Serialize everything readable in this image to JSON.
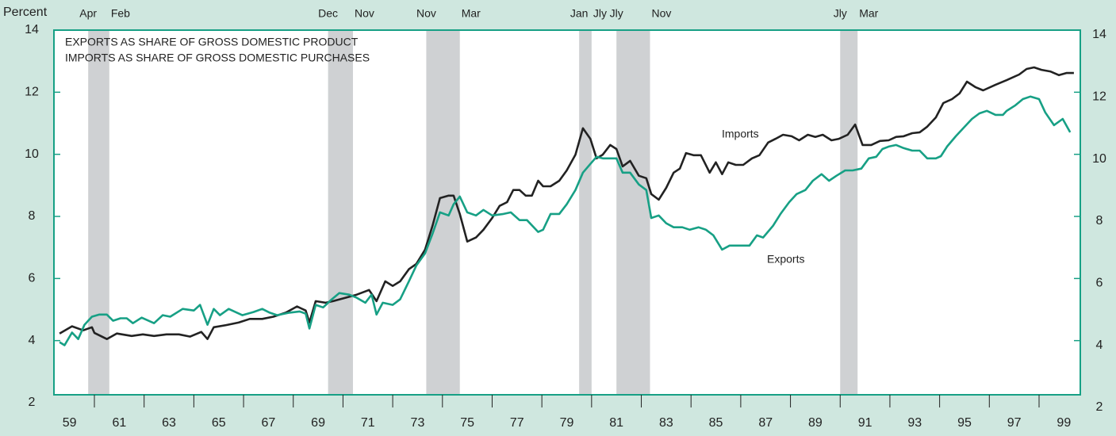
{
  "chart_data": {
    "type": "line",
    "y_axis_label": "Percent",
    "title_lines": [
      "EXPORTS AS SHARE OF GROSS DOMESTIC PRODUCT",
      "IMPORTS AS SHARE OF GROSS DOMESTIC PURCHASES"
    ],
    "xlim": [
      1959,
      2000
    ],
    "xticks": [
      {
        "value": 1959.5,
        "label": "59"
      },
      {
        "value": 1961.5,
        "label": "61"
      },
      {
        "value": 1963.5,
        "label": "63"
      },
      {
        "value": 1965.5,
        "label": "65"
      },
      {
        "value": 1967.5,
        "label": "67"
      },
      {
        "value": 1969.5,
        "label": "69"
      },
      {
        "value": 1971.5,
        "label": "71"
      },
      {
        "value": 1973.5,
        "label": "73"
      },
      {
        "value": 1975.5,
        "label": "75"
      },
      {
        "value": 1977.5,
        "label": "77"
      },
      {
        "value": 1979.5,
        "label": "79"
      },
      {
        "value": 1981.5,
        "label": "81"
      },
      {
        "value": 1983.5,
        "label": "83"
      },
      {
        "value": 1985.5,
        "label": "85"
      },
      {
        "value": 1987.5,
        "label": "87"
      },
      {
        "value": 1989.5,
        "label": "89"
      },
      {
        "value": 1991.5,
        "label": "91"
      },
      {
        "value": 1993.5,
        "label": "93"
      },
      {
        "value": 1995.5,
        "label": "95"
      },
      {
        "value": 1997.5,
        "label": "97"
      },
      {
        "value": 1999.5,
        "label": "99"
      }
    ],
    "xtick_marks": [
      1960.5,
      1962.5,
      1964.5,
      1966.5,
      1968.5,
      1970.5,
      1972.5,
      1974.5,
      1976.5,
      1978.5,
      1980.5,
      1982.5,
      1984.5,
      1986.5,
      1988.5,
      1990.5,
      1992.5,
      1994.5,
      1996.5,
      1998.5
    ],
    "ylim": [
      2,
      14
    ],
    "yticks": [
      2,
      4,
      6,
      8,
      10,
      12,
      14
    ],
    "y2lim": [
      2,
      14
    ],
    "y2ticks": [
      2,
      4,
      6,
      8,
      10,
      12,
      14
    ],
    "recessions": [
      {
        "start": 1960.25,
        "end": 1961.1,
        "start_label": "Apr",
        "end_label": "Feb"
      },
      {
        "start": 1969.9,
        "end": 1970.9,
        "start_label": "Dec",
        "end_label": "Nov"
      },
      {
        "start": 1973.85,
        "end": 1975.2,
        "start_label": "Nov",
        "end_label": "Mar"
      },
      {
        "start": 1980.0,
        "end": 1980.5,
        "start_label": "Jan",
        "end_label": "Jly"
      },
      {
        "start": 1981.5,
        "end": 1982.85,
        "start_label": "Jly",
        "end_label": "Nov"
      },
      {
        "start": 1990.5,
        "end": 1991.2,
        "start_label": "Jly",
        "end_label": "Mar"
      }
    ],
    "recession_color": "#cfd1d3",
    "series": [
      {
        "name": "Imports",
        "color": "#222222",
        "x": [
          1959.1,
          1959.6,
          1960.05,
          1960.4,
          1960.5,
          1961.0,
          1961.4,
          1962.0,
          1962.45,
          1962.9,
          1963.4,
          1963.9,
          1964.35,
          1964.8,
          1965.05,
          1965.3,
          1965.8,
          1966.3,
          1966.75,
          1967.25,
          1967.7,
          1968.2,
          1968.65,
          1969.0,
          1969.15,
          1969.4,
          1969.8,
          1970.1,
          1970.6,
          1971.05,
          1971.55,
          1971.85,
          1972.2,
          1972.5,
          1972.8,
          1973.15,
          1973.45,
          1973.8,
          1974.1,
          1974.4,
          1974.75,
          1974.95,
          1975.2,
          1975.5,
          1975.85,
          1976.15,
          1976.5,
          1976.8,
          1977.1,
          1977.35,
          1977.6,
          1977.85,
          1978.1,
          1978.35,
          1978.55,
          1978.85,
          1979.2,
          1979.5,
          1979.85,
          1980.15,
          1980.45,
          1980.7,
          1980.95,
          1981.25,
          1981.5,
          1981.75,
          1982.05,
          1982.4,
          1982.7,
          1982.9,
          1983.2,
          1983.5,
          1983.8,
          1984.05,
          1984.3,
          1984.6,
          1984.9,
          1985.25,
          1985.5,
          1985.75,
          1986.0,
          1986.3,
          1986.6,
          1986.95,
          1987.25,
          1987.6,
          1987.9,
          1988.2,
          1988.55,
          1988.85,
          1989.2,
          1989.5,
          1989.8,
          1990.15,
          1990.45,
          1990.8,
          1991.1,
          1991.4,
          1991.75,
          1992.1,
          1992.45,
          1992.75,
          1993.05,
          1993.4,
          1993.7,
          1994.0,
          1994.35,
          1994.65,
          1995.0,
          1995.3,
          1995.6,
          1995.95,
          1996.25,
          1996.75,
          1997.2,
          1997.7,
          1998.0,
          1998.3,
          1998.6,
          1998.95,
          1999.3,
          1999.6,
          1999.9
        ],
        "values": [
          4.23,
          4.46,
          4.33,
          4.43,
          4.25,
          4.05,
          4.23,
          4.15,
          4.2,
          4.15,
          4.2,
          4.2,
          4.13,
          4.28,
          4.05,
          4.43,
          4.5,
          4.58,
          4.7,
          4.7,
          4.77,
          4.9,
          5.1,
          4.97,
          4.58,
          5.27,
          5.22,
          5.27,
          5.38,
          5.48,
          5.63,
          5.27,
          5.91,
          5.76,
          5.91,
          6.3,
          6.47,
          6.93,
          7.7,
          8.59,
          8.67,
          8.67,
          8.08,
          7.19,
          7.32,
          7.57,
          7.95,
          8.34,
          8.46,
          8.85,
          8.85,
          8.67,
          8.67,
          9.15,
          8.97,
          8.97,
          9.15,
          9.48,
          9.99,
          10.84,
          10.5,
          9.87,
          9.99,
          10.3,
          10.17,
          9.61,
          9.79,
          9.31,
          9.23,
          8.72,
          8.54,
          8.92,
          9.41,
          9.54,
          10.04,
          9.97,
          9.97,
          9.41,
          9.74,
          9.36,
          9.74,
          9.66,
          9.66,
          9.87,
          9.97,
          10.38,
          10.5,
          10.63,
          10.58,
          10.45,
          10.63,
          10.56,
          10.63,
          10.45,
          10.5,
          10.63,
          10.96,
          10.3,
          10.3,
          10.43,
          10.45,
          10.56,
          10.58,
          10.68,
          10.71,
          10.89,
          11.19,
          11.65,
          11.78,
          11.96,
          12.34,
          12.16,
          12.06,
          12.24,
          12.39,
          12.57,
          12.75,
          12.8,
          12.72,
          12.67,
          12.55,
          12.62,
          12.62
        ]
      },
      {
        "name": "Exports",
        "color": "#17a085",
        "x": [
          1959.1,
          1959.3,
          1959.6,
          1959.85,
          1960.1,
          1960.4,
          1960.7,
          1961.0,
          1961.25,
          1961.55,
          1961.8,
          1962.05,
          1962.4,
          1962.9,
          1963.25,
          1963.55,
          1964.05,
          1964.5,
          1964.75,
          1965.05,
          1965.3,
          1965.55,
          1965.9,
          1966.45,
          1966.9,
          1967.25,
          1967.55,
          1967.85,
          1968.35,
          1968.75,
          1969.0,
          1969.15,
          1969.4,
          1969.7,
          1970.05,
          1970.35,
          1970.75,
          1971.05,
          1971.4,
          1971.65,
          1971.85,
          1972.1,
          1972.5,
          1972.8,
          1973.15,
          1973.45,
          1973.8,
          1974.1,
          1974.4,
          1974.75,
          1974.95,
          1975.2,
          1975.5,
          1975.85,
          1976.15,
          1976.5,
          1976.95,
          1977.25,
          1977.6,
          1977.9,
          1978.35,
          1978.55,
          1978.85,
          1979.2,
          1979.5,
          1979.85,
          1980.15,
          1980.45,
          1980.7,
          1980.95,
          1981.25,
          1981.5,
          1981.75,
          1982.05,
          1982.4,
          1982.7,
          1982.9,
          1983.2,
          1983.5,
          1983.8,
          1984.15,
          1984.45,
          1984.8,
          1985.1,
          1985.4,
          1985.75,
          1986.05,
          1986.5,
          1986.85,
          1987.15,
          1987.4,
          1987.8,
          1988.1,
          1988.45,
          1988.75,
          1989.1,
          1989.4,
          1989.75,
          1990.05,
          1990.35,
          1990.7,
          1991.0,
          1991.35,
          1991.65,
          1991.95,
          1992.2,
          1992.45,
          1992.75,
          1993.05,
          1993.4,
          1993.7,
          1994.0,
          1994.35,
          1994.55,
          1994.8,
          1995.15,
          1995.45,
          1995.8,
          1996.1,
          1996.4,
          1996.75,
          1997.05,
          1997.2,
          1997.55,
          1997.85,
          1998.15,
          1998.5,
          1998.75,
          1999.1,
          1999.45,
          1999.75
        ],
        "values": [
          3.95,
          3.85,
          4.26,
          4.05,
          4.51,
          4.77,
          4.84,
          4.84,
          4.64,
          4.72,
          4.72,
          4.56,
          4.74,
          4.56,
          4.82,
          4.77,
          5.02,
          4.97,
          5.15,
          4.51,
          5.02,
          4.82,
          5.02,
          4.82,
          4.92,
          5.02,
          4.9,
          4.82,
          4.9,
          4.94,
          4.87,
          4.39,
          5.15,
          5.07,
          5.33,
          5.53,
          5.48,
          5.38,
          5.22,
          5.48,
          4.84,
          5.22,
          5.15,
          5.33,
          5.91,
          6.42,
          6.81,
          7.44,
          8.13,
          8.03,
          8.39,
          8.64,
          8.13,
          8.03,
          8.21,
          8.03,
          8.08,
          8.13,
          7.88,
          7.88,
          7.5,
          7.57,
          8.08,
          8.08,
          8.39,
          8.85,
          9.41,
          9.69,
          9.92,
          9.87,
          9.87,
          9.87,
          9.41,
          9.41,
          9.03,
          8.85,
          7.95,
          8.03,
          7.78,
          7.65,
          7.65,
          7.57,
          7.65,
          7.57,
          7.39,
          6.93,
          7.06,
          7.06,
          7.06,
          7.39,
          7.32,
          7.7,
          8.08,
          8.46,
          8.72,
          8.85,
          9.15,
          9.36,
          9.15,
          9.31,
          9.48,
          9.48,
          9.54,
          9.87,
          9.92,
          10.17,
          10.25,
          10.3,
          10.2,
          10.12,
          10.12,
          9.87,
          9.87,
          9.94,
          10.25,
          10.58,
          10.84,
          11.14,
          11.32,
          11.4,
          11.27,
          11.27,
          11.4,
          11.58,
          11.78,
          11.86,
          11.78,
          11.35,
          10.94,
          11.14,
          10.71
        ]
      }
    ],
    "axis_color": "#17a085",
    "background": "#cfe7df"
  }
}
